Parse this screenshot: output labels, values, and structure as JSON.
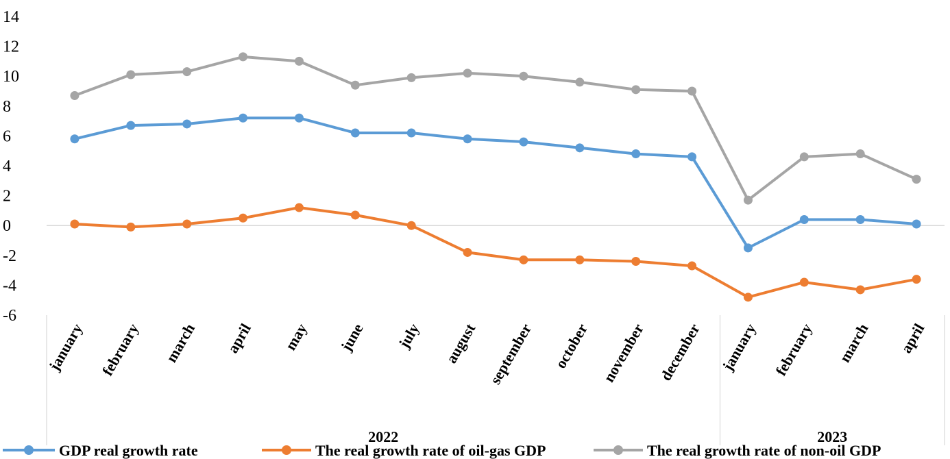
{
  "chart_data": {
    "type": "line",
    "title": "",
    "xlabel": "",
    "ylabel": "",
    "ylim": [
      -6,
      14
    ],
    "yticks": [
      14,
      12,
      10,
      8,
      6,
      4,
      2,
      0,
      -2,
      -4,
      -6
    ],
    "categories": [
      "january",
      "february",
      "march",
      "april",
      "may",
      "june",
      "july",
      "august",
      "september",
      "october",
      "november",
      "december",
      "january",
      "february",
      "march",
      "april"
    ],
    "groups": [
      {
        "label": "2022",
        "count": 12
      },
      {
        "label": "2023",
        "count": 4
      }
    ],
    "series": [
      {
        "name": "GDP real growth rate",
        "color": "#5b9bd5",
        "values": [
          5.8,
          6.7,
          6.8,
          7.2,
          7.2,
          6.2,
          6.2,
          5.8,
          5.6,
          5.2,
          4.8,
          4.6,
          -1.5,
          0.4,
          0.4,
          0.1
        ]
      },
      {
        "name": "The real growth rate of oil-gas GDP",
        "color": "#ed7d31",
        "values": [
          0.1,
          -0.1,
          0.1,
          0.5,
          1.2,
          0.7,
          0.0,
          -1.8,
          -2.3,
          -2.3,
          -2.4,
          -2.7,
          -4.8,
          -3.8,
          -4.3,
          -3.6
        ]
      },
      {
        "name": "The real growth rate of non-oil GDP",
        "color": "#a5a5a5",
        "values": [
          8.7,
          10.1,
          10.3,
          11.3,
          11.0,
          9.4,
          9.9,
          10.2,
          10.0,
          9.6,
          9.1,
          9.0,
          1.7,
          4.6,
          4.8,
          3.1
        ]
      }
    ],
    "grid": false,
    "legend_position": "bottom"
  }
}
